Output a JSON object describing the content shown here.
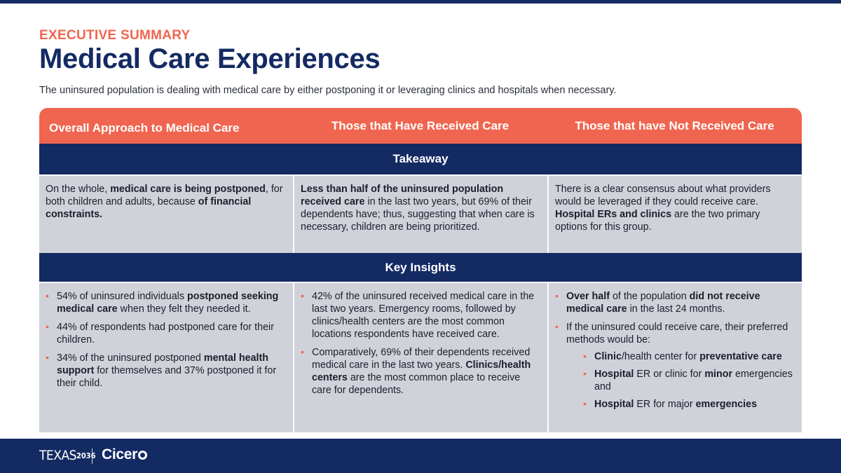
{
  "header": {
    "eyebrow": "EXECUTIVE SUMMARY",
    "title": "Medical Care Experiences",
    "subtitle": "The uninsured population is dealing with medical care by either postponing it or leveraging clinics and hospitals when necessary."
  },
  "table": {
    "columns": [
      "Overall Approach to Medical Care",
      "Those that Have Received Care",
      "Those that have Not Received Care"
    ],
    "takeaway_label": "Takeaway",
    "key_insights_label": "Key Insights",
    "takeaway": [
      {
        "segments": [
          {
            "t": "On the whole, ",
            "b": false
          },
          {
            "t": "medical care is being postponed",
            "b": true
          },
          {
            "t": ", for both children and adults, because ",
            "b": false
          },
          {
            "t": "of financial constraints.",
            "b": true
          }
        ]
      },
      {
        "segments": [
          {
            "t": "Less than half of the uninsured population received care",
            "b": true
          },
          {
            "t": " in the last two years, but 69% of their dependents have; thus, suggesting that when care is necessary, children are being prioritized.",
            "b": false
          }
        ]
      },
      {
        "segments": [
          {
            "t": "There is a clear consensus about what providers would be leveraged if they could receive care. ",
            "b": false
          },
          {
            "t": "Hospital ERs and clinics",
            "b": true
          },
          {
            "t": " are the two primary options for this group.",
            "b": false
          }
        ]
      }
    ],
    "insights": [
      [
        [
          {
            "t": "54% of uninsured individuals ",
            "b": false
          },
          {
            "t": "postponed seeking medical care",
            "b": true
          },
          {
            "t": " when they felt they needed it.",
            "b": false
          }
        ],
        [
          {
            "t": "44% of respondents had postponed care for their children.",
            "b": false
          }
        ],
        [
          {
            "t": "34% of the uninsured postponed ",
            "b": false
          },
          {
            "t": "mental health support",
            "b": true
          },
          {
            "t": " for themselves and 37% postponed it for their child.",
            "b": false
          }
        ]
      ],
      [
        [
          {
            "t": "42% of the uninsured received medical care in the last two years. Emergency rooms, followed by clinics/health centers are the most common locations respondents have received care.",
            "b": false
          }
        ],
        [
          {
            "t": "Comparatively, 69% of their dependents received medical care in the last two years. ",
            "b": false
          },
          {
            "t": "Clinics/health centers",
            "b": true
          },
          {
            "t": " are the most common place to receive care for dependents.",
            "b": false
          }
        ]
      ],
      [
        [
          {
            "t": "Over half",
            "b": true
          },
          {
            "t": " of the population ",
            "b": false
          },
          {
            "t": "did not receive medical care",
            "b": true
          },
          {
            "t": " in the last 24 months.",
            "b": false
          }
        ],
        [
          {
            "t": "If the uninsured could receive care, their preferred methods would be:",
            "b": false
          }
        ]
      ]
    ],
    "preferred_methods": [
      [
        {
          "t": "Clinic",
          "b": true
        },
        {
          "t": "/health center for ",
          "b": false
        },
        {
          "t": "preventative care",
          "b": true
        }
      ],
      [
        {
          "t": "Hospital",
          "b": true
        },
        {
          "t": " ER or clinic for ",
          "b": false
        },
        {
          "t": "minor",
          "b": true
        },
        {
          "t": " emergencies and",
          "b": false
        }
      ],
      [
        {
          "t": "Hospital",
          "b": true
        },
        {
          "t": " ER for major ",
          "b": false
        },
        {
          "t": "emergencies",
          "b": true
        }
      ]
    ]
  },
  "footer": {
    "logo_texas": "TEXAS",
    "logo_texas_suffix": "2036",
    "logo_cicero": "Cicer"
  },
  "colors": {
    "accent": "#f0654f",
    "navy": "#142a63",
    "cell_bg": "#d0d2da"
  }
}
